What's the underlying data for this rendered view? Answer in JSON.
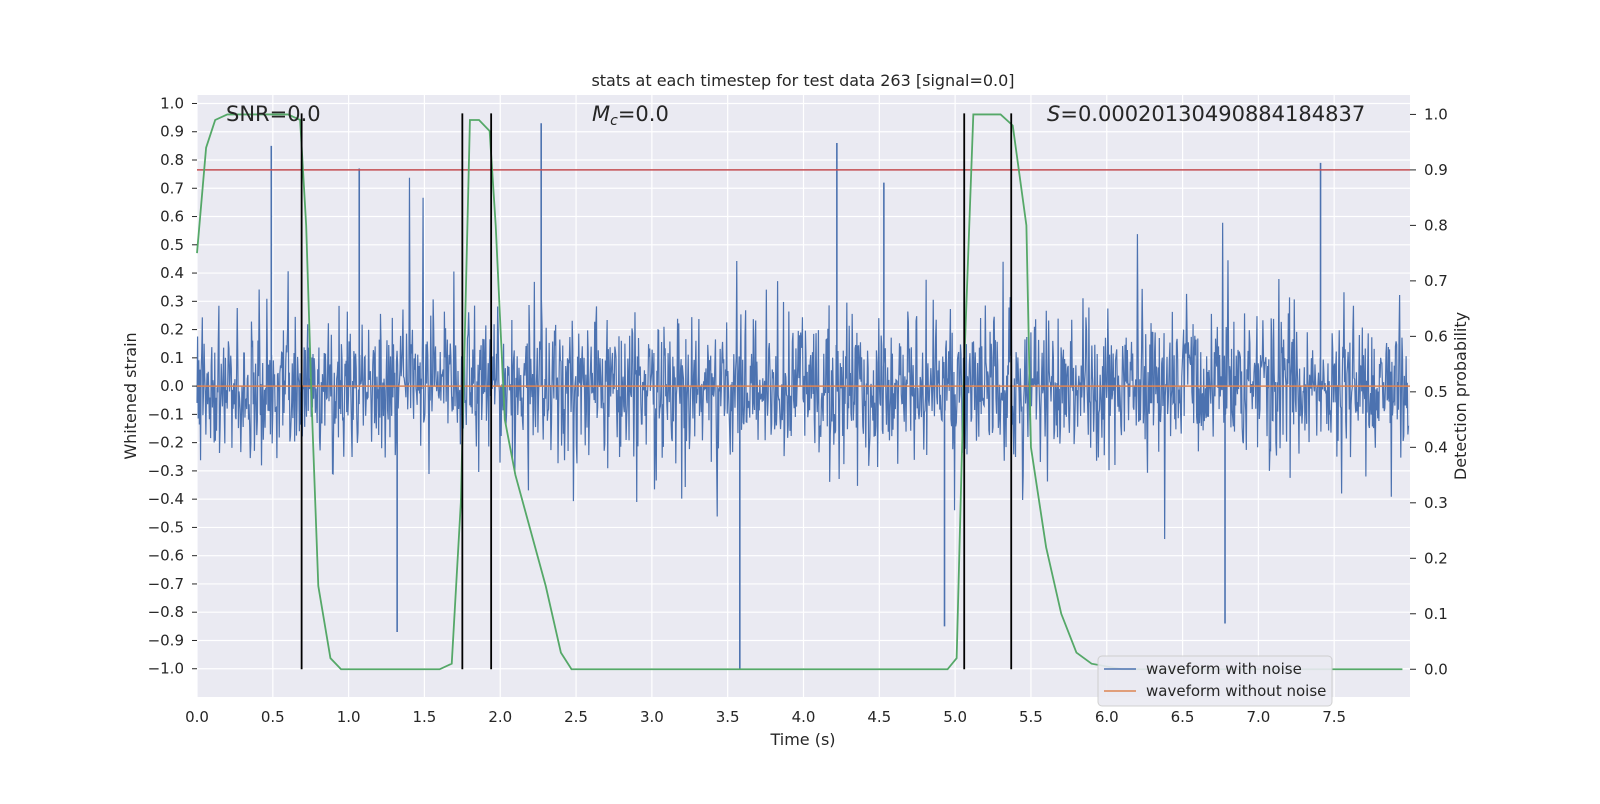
{
  "chart_data": {
    "type": "line",
    "title": "stats at each timestep for test data 263 [signal=0.0]",
    "xlabel": "Time (s)",
    "ylabel": "Whitened strain",
    "ylabel_right": "Detection probability",
    "xlim": [
      0.0,
      8.0
    ],
    "ylim": [
      -1.1,
      1.03
    ],
    "ylim_right": [
      -0.05,
      1.035
    ],
    "x_ticks": [
      0.0,
      0.5,
      1.0,
      1.5,
      2.0,
      2.5,
      3.0,
      3.5,
      4.0,
      4.5,
      5.0,
      5.5,
      6.0,
      6.5,
      7.0,
      7.5
    ],
    "x_tick_labels": [
      "0.0",
      "0.5",
      "1.0",
      "1.5",
      "2.0",
      "2.5",
      "3.0",
      "3.5",
      "4.0",
      "4.5",
      "5.0",
      "5.5",
      "6.0",
      "6.5",
      "7.0",
      "7.5"
    ],
    "y_ticks": [
      1.0,
      0.9,
      0.8,
      0.7,
      0.6,
      0.5,
      0.4,
      0.3,
      0.2,
      0.1,
      0.0,
      -0.1,
      -0.2,
      -0.3,
      -0.4,
      -0.5,
      -0.6,
      -0.7,
      -0.8,
      -0.9,
      -1.0
    ],
    "y_tick_labels": [
      "1.0",
      "0.9",
      "0.8",
      "0.7",
      "0.6",
      "0.5",
      "0.4",
      "0.3",
      "0.2",
      "0.1",
      "0.0",
      "−0.1",
      "−0.2",
      "−0.3",
      "−0.4",
      "−0.5",
      "−0.6",
      "−0.7",
      "−0.8",
      "−0.9",
      "−1.0"
    ],
    "y_right_ticks": [
      1.0,
      0.9,
      0.8,
      0.7,
      0.6,
      0.5,
      0.4,
      0.3,
      0.2,
      0.1,
      0.0
    ],
    "y_right_tick_labels": [
      "1.0",
      "0.9",
      "0.8",
      "0.7",
      "0.6",
      "0.5",
      "0.4",
      "0.3",
      "0.2",
      "0.1",
      "0.0"
    ],
    "grid": true,
    "annotations": {
      "snr": "SNR=0.0",
      "mc_symbol": "M",
      "mc_sub": "c",
      "mc_value": "=0.0",
      "s_symbol": "S",
      "s_value": "=0.00020130490884184837"
    },
    "series": [
      {
        "name": "waveform with noise",
        "color": "#4c72b0",
        "description_of_values": "dense noise, typical |y| ≈ 0.35, peaks up to ~0.93 and down to ~-1.0",
        "peaks": [
          [
            0.49,
            0.85
          ],
          [
            1.07,
            0.77
          ],
          [
            2.27,
            0.93
          ],
          [
            3.58,
            -1.0
          ],
          [
            4.22,
            0.86
          ],
          [
            4.53,
            0.72
          ],
          [
            4.93,
            -0.85
          ],
          [
            6.78,
            -0.84
          ],
          [
            7.41,
            0.79
          ],
          [
            1.32,
            -0.87
          ]
        ]
      },
      {
        "name": "waveform without noise",
        "color": "#dd8452",
        "values_constant": 0.0
      },
      {
        "name": "",
        "color": "#55a868",
        "axis": "right",
        "x": [
          0.0,
          0.06,
          0.12,
          0.2,
          0.3,
          0.45,
          0.6,
          0.68,
          0.72,
          0.76,
          0.8,
          0.88,
          0.95,
          1.2,
          1.6,
          1.68,
          1.74,
          1.8,
          1.86,
          1.93,
          1.97,
          2.03,
          2.1,
          2.3,
          2.4,
          2.47,
          2.55,
          3.0,
          4.0,
          4.95,
          5.01,
          5.06,
          5.12,
          5.3,
          5.38,
          5.42,
          5.47,
          5.5,
          5.6,
          5.7,
          5.8,
          5.9,
          6.1,
          6.5,
          7.0,
          7.5,
          7.95
        ],
        "values": [
          0.75,
          0.94,
          0.99,
          1.0,
          1.0,
          1.0,
          1.0,
          0.99,
          0.8,
          0.45,
          0.15,
          0.02,
          0.0,
          0.0,
          0.0,
          0.01,
          0.3,
          0.99,
          0.99,
          0.97,
          0.8,
          0.45,
          0.35,
          0.15,
          0.03,
          0.0,
          0.0,
          0.0,
          0.0,
          0.0,
          0.02,
          0.55,
          1.0,
          1.0,
          0.98,
          0.9,
          0.8,
          0.4,
          0.22,
          0.1,
          0.03,
          0.01,
          0.0,
          0.0,
          0.0,
          0.0,
          0.0
        ]
      },
      {
        "name": "",
        "color": "#c44e52",
        "axis": "right",
        "values_constant": 0.9
      }
    ],
    "vertical_lines_x": [
      0.69,
      1.75,
      1.94,
      5.06,
      5.37
    ],
    "legend": {
      "placement": "lower-right",
      "entries": [
        "waveform with noise",
        "waveform without noise"
      ]
    }
  }
}
